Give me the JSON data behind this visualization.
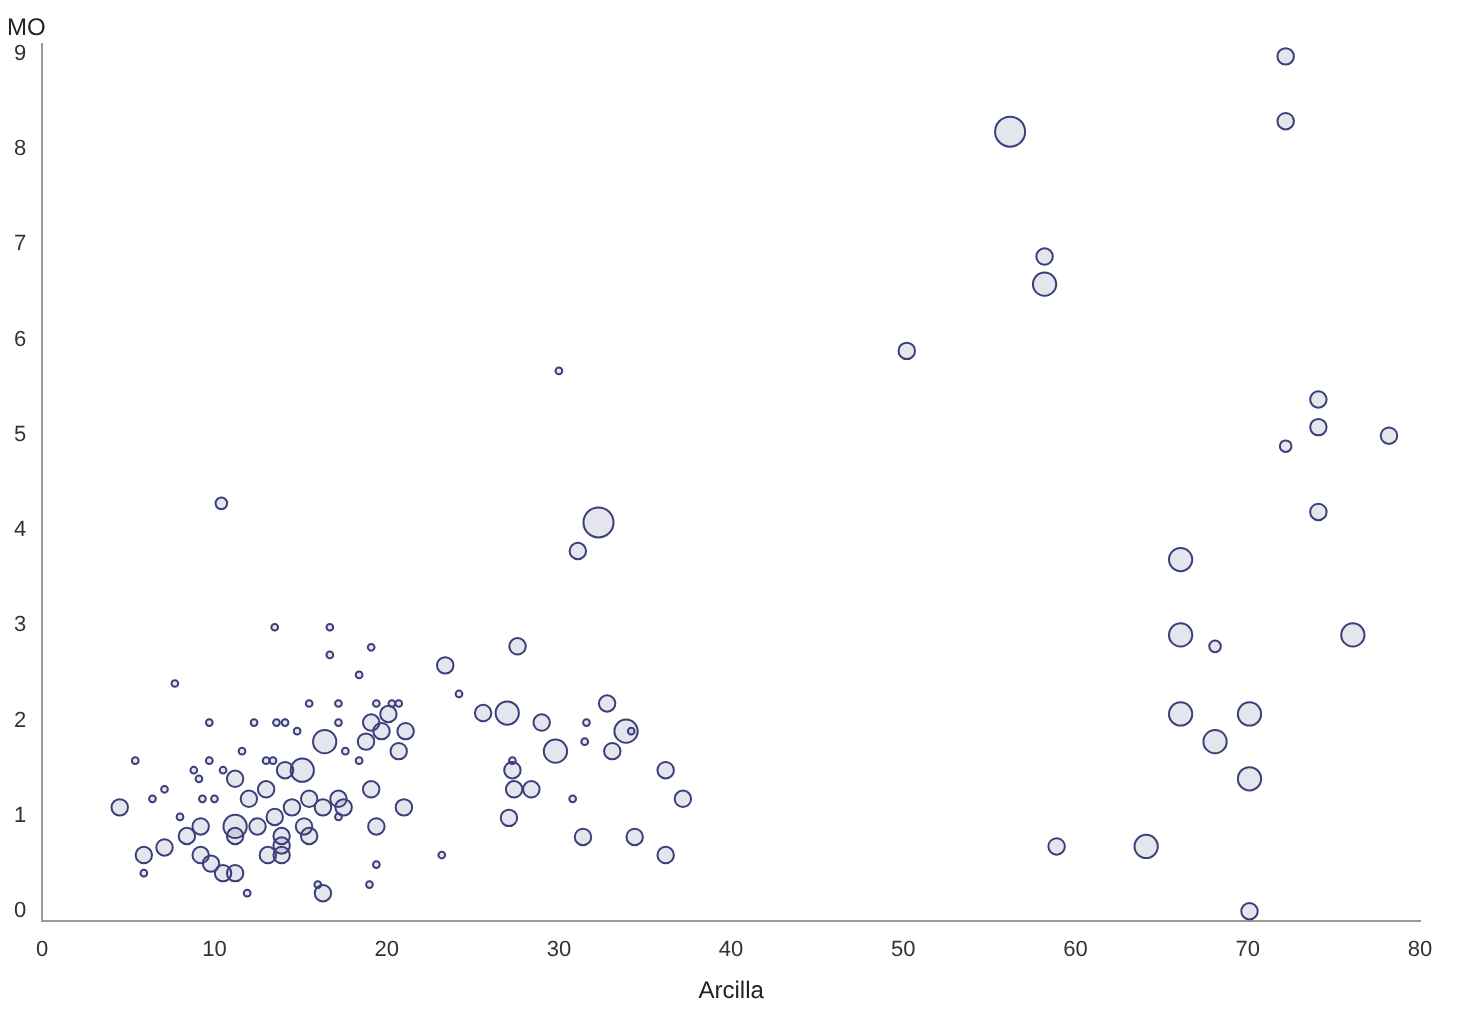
{
  "chart_data": {
    "type": "bubble",
    "xlabel": "Arcilla",
    "ylabel": "MO",
    "xlim": [
      0,
      80
    ],
    "ylim": [
      -0.1,
      9.1
    ],
    "xticks": [
      0,
      10,
      20,
      30,
      40,
      50,
      60,
      70,
      80
    ],
    "yticks": [
      0,
      1,
      2,
      3,
      4,
      5,
      6,
      7,
      8,
      9
    ],
    "grid": false,
    "legend": false,
    "marker": "circle",
    "series": [
      {
        "color": "#3a3f7a",
        "x": [
          72.2,
          72.2,
          56.2,
          58.2,
          58.2,
          50.2,
          74.1,
          74.1,
          72.2,
          78.2,
          74.1,
          66.1,
          66.1,
          68.1,
          76.1,
          66.1,
          70.1,
          68.1,
          70.1,
          58.9,
          64.1,
          70.1,
          30.0,
          32.3,
          31.1,
          27.6,
          23.4,
          24.2,
          32.8,
          25.6,
          27.0,
          29.0,
          33.9,
          34.2,
          29.8,
          33.1,
          31.6,
          31.5,
          27.3,
          27.3,
          27.4,
          28.4,
          27.1,
          30.8,
          31.4,
          34.4,
          36.2,
          37.2,
          36.2,
          23.2,
          13.5,
          16.7,
          16.7,
          19.1,
          7.7,
          18.4,
          16.4,
          4.5,
          5.4,
          5.9,
          5.9,
          7.1,
          8.4,
          9.2,
          9.2,
          9.8,
          10.5,
          11.2,
          11.9,
          11.2,
          11.2,
          11.2,
          12.5,
          13.1,
          13.9,
          13.9,
          13.9,
          13.5,
          15.5,
          15.2,
          16.3,
          16.0,
          16.3,
          17.2,
          17.5,
          19.4,
          19.4,
          19.0,
          14.1,
          13.0,
          12.0,
          15.1,
          15.5,
          14.5,
          19.1,
          20.1,
          18.8,
          19.7,
          21.1,
          20.7,
          19.1,
          21.0,
          9.7,
          12.3,
          13.6,
          14.1,
          15.5,
          17.2,
          19.4,
          20.3,
          20.7,
          17.2,
          14.8,
          11.6,
          9.1,
          8.8,
          9.7,
          10.5,
          13.0,
          13.4,
          17.6,
          18.4,
          7.1,
          6.4,
          8.0,
          10.0,
          17.2,
          9.3,
          10.4
        ],
        "values": [
          8.97,
          8.29,
          8.18,
          6.87,
          6.58,
          5.88,
          5.37,
          5.08,
          4.88,
          4.99,
          4.19,
          3.69,
          2.9,
          2.78,
          2.9,
          2.07,
          2.07,
          1.78,
          1.39,
          0.68,
          0.68,
          0,
          5.67,
          4.08,
          3.78,
          2.78,
          2.58,
          2.28,
          2.18,
          2.08,
          2.08,
          1.98,
          1.89,
          1.89,
          1.68,
          1.68,
          1.98,
          1.78,
          1.58,
          1.48,
          1.28,
          1.28,
          0.98,
          1.18,
          0.78,
          0.78,
          1.48,
          1.18,
          0.59,
          0.59,
          2.98,
          2.98,
          2.69,
          2.77,
          2.39,
          2.48,
          1.78,
          1.09,
          1.58,
          0.59,
          0.4,
          0.67,
          0.79,
          0.59,
          0.89,
          0.5,
          0.4,
          0.4,
          0.19,
          0.79,
          0.89,
          1.39,
          0.89,
          0.59,
          0.59,
          0.69,
          0.79,
          0.99,
          0.79,
          0.89,
          0.19,
          0.28,
          1.09,
          1.18,
          1.09,
          0.89,
          0.49,
          0.28,
          1.48,
          1.28,
          1.18,
          1.48,
          1.18,
          1.09,
          1.98,
          2.07,
          1.78,
          1.89,
          1.89,
          1.68,
          1.28,
          1.09,
          1.98,
          1.98,
          1.98,
          1.98,
          2.18,
          2.18,
          2.18,
          2.18,
          2.18,
          1.98,
          1.89,
          1.68,
          1.39,
          1.48,
          1.58,
          1.48,
          1.58,
          1.58,
          1.68,
          1.58,
          1.28,
          1.18,
          0.99,
          1.18,
          0.99,
          1.18,
          4.28
        ],
        "sizes": [
          0.3,
          0.3,
          1,
          0.3,
          0.6,
          0.3,
          0.3,
          0.3,
          0.15,
          0.3,
          0.3,
          0.6,
          0.6,
          0.15,
          0.6,
          0.6,
          0.6,
          0.6,
          0.6,
          0.3,
          0.6,
          0.3,
          0.05,
          1,
          0.3,
          0.3,
          0.3,
          0.05,
          0.3,
          0.3,
          0.6,
          0.3,
          0.6,
          0.05,
          0.6,
          0.3,
          0.05,
          0.05,
          0.05,
          0.3,
          0.3,
          0.3,
          0.3,
          0.05,
          0.3,
          0.3,
          0.3,
          0.3,
          0.3,
          0.05,
          0.05,
          0.05,
          0.05,
          0.05,
          0.05,
          0.05,
          0.6,
          0.3,
          0.05,
          0.3,
          0.05,
          0.3,
          0.3,
          0.3,
          0.3,
          0.3,
          0.3,
          0.3,
          0.05,
          0.3,
          0.6,
          0.3,
          0.3,
          0.3,
          0.3,
          0.3,
          0.3,
          0.3,
          0.3,
          0.3,
          0.3,
          0.05,
          0.3,
          0.3,
          0.3,
          0.3,
          0.05,
          0.05,
          0.3,
          0.3,
          0.3,
          0.6,
          0.3,
          0.3,
          0.3,
          0.3,
          0.3,
          0.3,
          0.3,
          0.3,
          0.3,
          0.3,
          0.05,
          0.05,
          0.05,
          0.05,
          0.05,
          0.05,
          0.05,
          0.05,
          0.05,
          0.05,
          0.05,
          0.05,
          0.05,
          0.05,
          0.05,
          0.05,
          0.05,
          0.05,
          0.05,
          0.05,
          0.05,
          0.05,
          0.05,
          0.05,
          0.05,
          0.05,
          0.15
        ]
      }
    ]
  }
}
